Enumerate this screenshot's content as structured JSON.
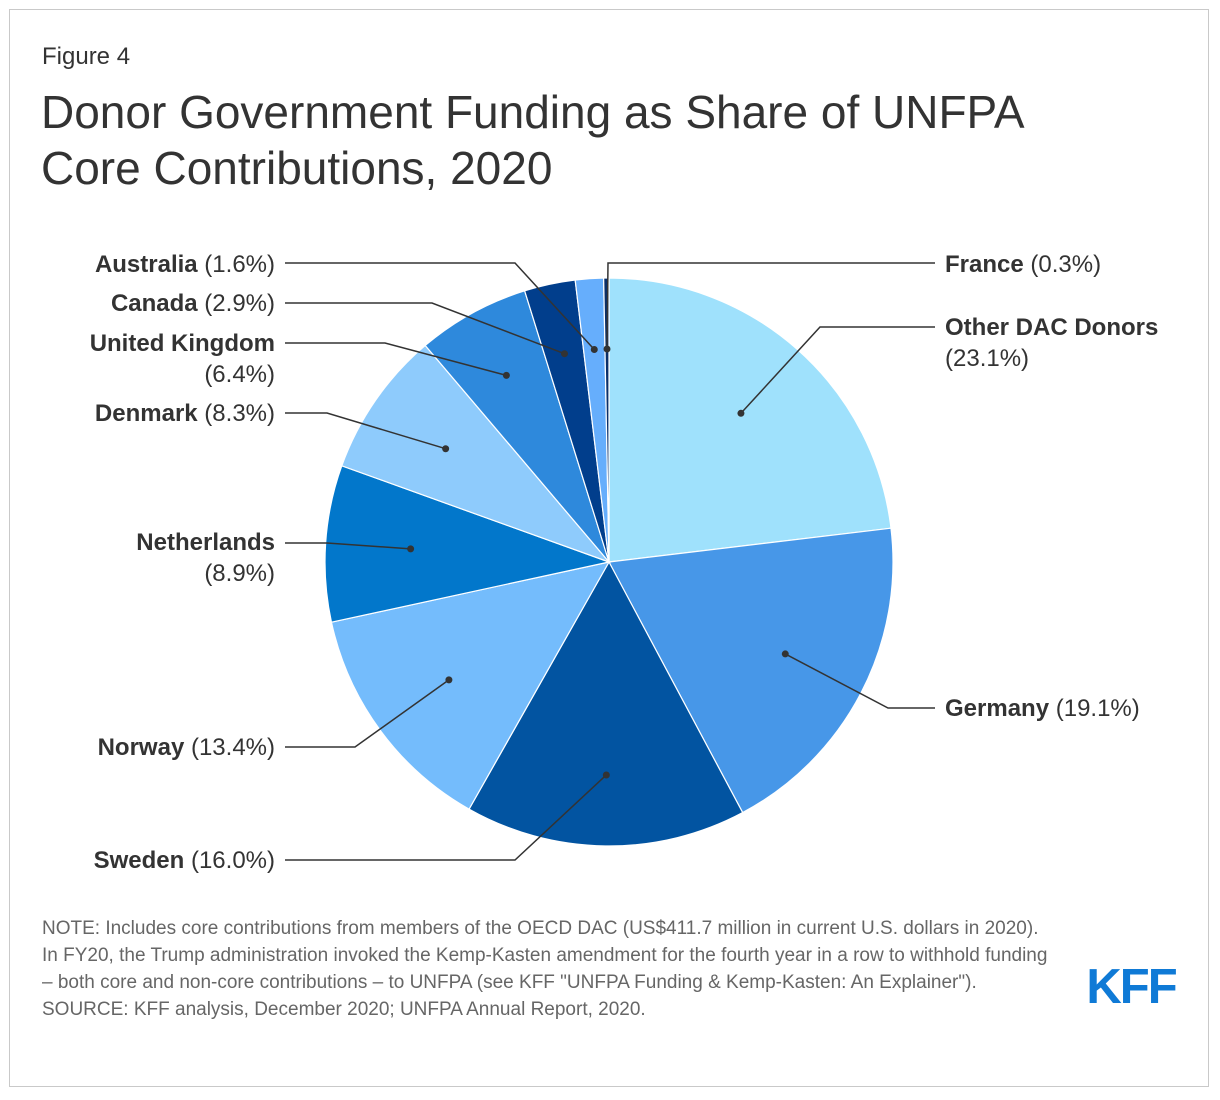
{
  "figure_label": "Figure 4",
  "title_line1": "Donor Government Funding as Share of UNFPA",
  "title_line2": "Core Contributions, 2020",
  "chart_data": {
    "type": "pie",
    "title": "Donor Government Funding as Share of UNFPA Core Contributions, 2020",
    "unit": "%",
    "slices": [
      {
        "name": "Other DAC Donors",
        "value": 23.1,
        "label": "(23.1%)",
        "color": "#9fe1fc"
      },
      {
        "name": "Germany",
        "value": 19.1,
        "label": "(19.1%)",
        "color": "#4797e8"
      },
      {
        "name": "Sweden",
        "value": 16.0,
        "label": "(16.0%)",
        "color": "#0254a1"
      },
      {
        "name": "Norway",
        "value": 13.4,
        "label": "(13.4%)",
        "color": "#74bcfc"
      },
      {
        "name": "Netherlands",
        "value": 8.9,
        "label": "(8.9%)",
        "color": "#0277cb"
      },
      {
        "name": "Denmark",
        "value": 8.3,
        "label": "(8.3%)",
        "color": "#8ecbfc"
      },
      {
        "name": "United Kingdom",
        "value": 6.4,
        "label": "(6.4%)",
        "color": "#2e89dc"
      },
      {
        "name": "Canada",
        "value": 2.9,
        "label": "(2.9%)",
        "color": "#013e8c"
      },
      {
        "name": "Australia",
        "value": 1.6,
        "label": "(1.6%)",
        "color": "#66aefc"
      },
      {
        "name": "France",
        "value": 0.3,
        "label": "(0.3%)",
        "color": "#0a2f6a"
      }
    ]
  },
  "note": "NOTE: Includes core contributions from members of the OECD DAC (US$411.7 million in current U.S. dollars in 2020). In FY20, the Trump administration invoked the Kemp-Kasten amendment for the fourth year in a row to withhold funding – both core and non-core contributions – to UNFPA (see KFF \"UNFPA Funding & Kemp-Kasten: An Explainer\"). SOURCE: KFF analysis, December 2020; UNFPA Annual Report, 2020.",
  "logo_text": "KFF",
  "colors": {
    "leader": "#333333",
    "logo": "#0f7ad6",
    "slice_border": "#ffffff"
  }
}
